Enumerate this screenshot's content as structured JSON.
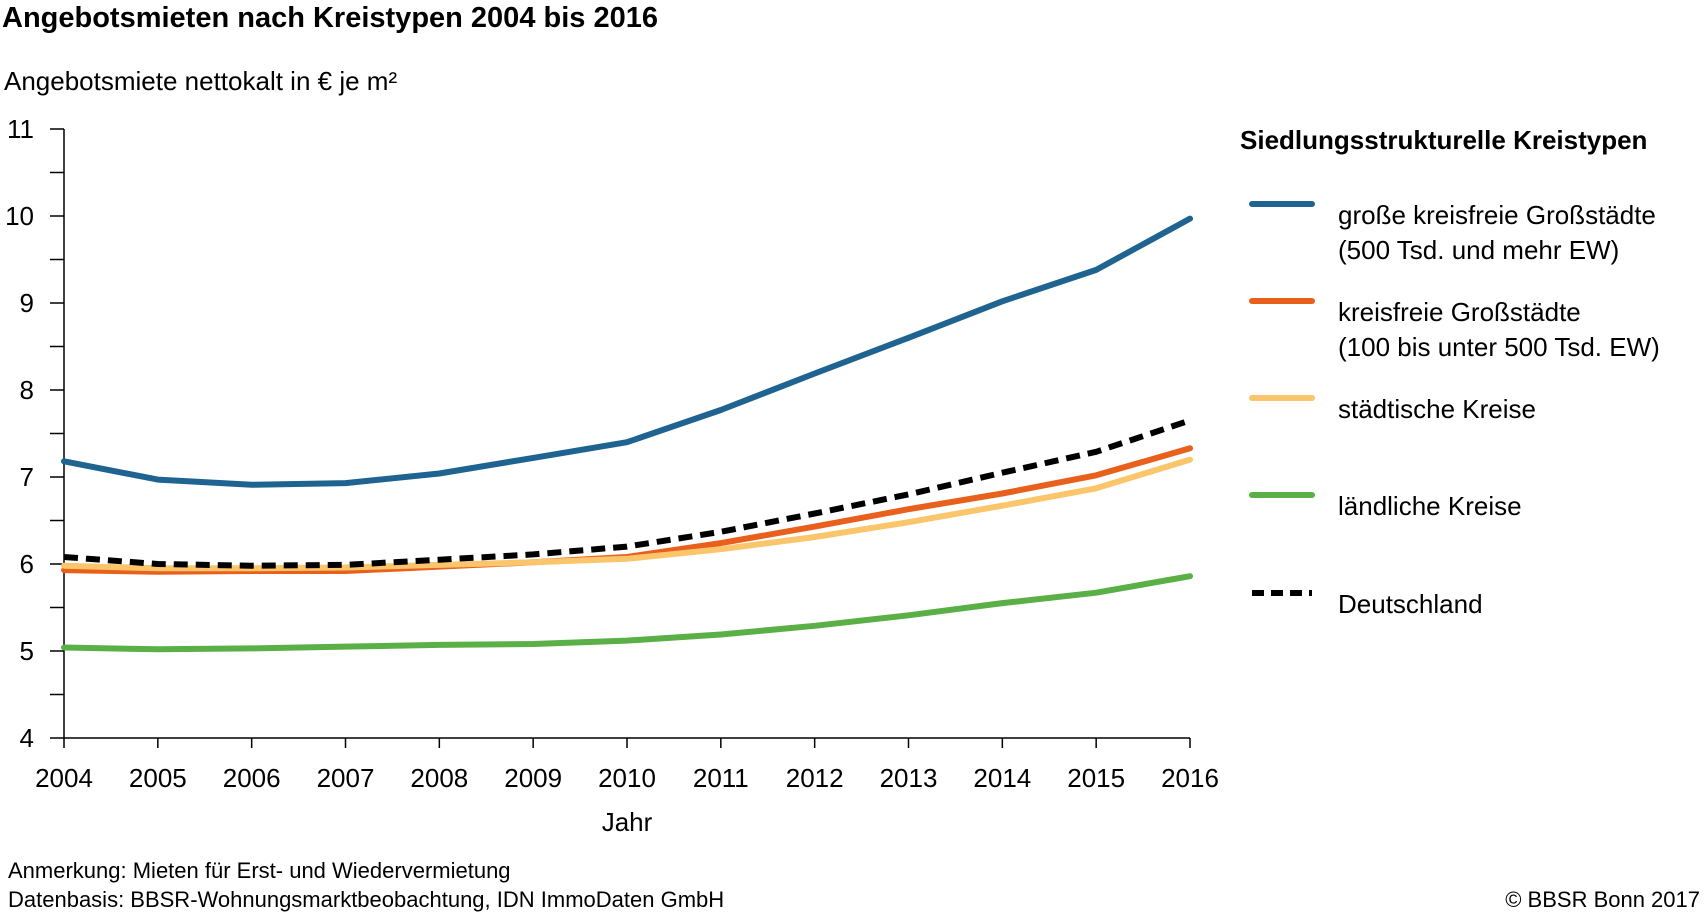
{
  "title": "Angebotsmieten nach Kreistypen 2004 bis 2016",
  "note1": "Anmerkung: Mieten für Erst- und Wiedervermietung",
  "note2": "Datenbasis: BBSR-Wohnungsmarktbeobachtung, IDN ImmoDaten GmbH",
  "copyright": "© BBSR Bonn 2017",
  "chart_data": {
    "type": "line",
    "title": "Angebotsmieten nach Kreistypen 2004 bis 2016",
    "ylabel": "Angebotsmiete nettokalt in € je m²",
    "xlabel": "Jahr",
    "ylim": [
      4,
      11
    ],
    "yticks": [
      4,
      5,
      6,
      7,
      8,
      9,
      10,
      11
    ],
    "x": [
      "2004",
      "2005",
      "2006",
      "2007",
      "2008",
      "2009",
      "2010",
      "2011",
      "2012",
      "2013",
      "2014",
      "2015",
      "2016"
    ],
    "grid": false,
    "legend_title": "Siedlungsstrukturelle Kreistypen",
    "legend_position": "right",
    "series": [
      {
        "name": "große kreisfreie Großstädte",
        "name_line2": "(500 Tsd. und mehr EW)",
        "color": "#1f6391",
        "style": "solid",
        "values": [
          7.18,
          6.97,
          6.91,
          6.93,
          7.04,
          7.22,
          7.4,
          7.77,
          8.19,
          8.6,
          9.02,
          9.38,
          9.97
        ]
      },
      {
        "name": "kreisfreie Großstädte",
        "name_line2": "(100 bis unter 500 Tsd. EW)",
        "color": "#e8601c",
        "style": "solid",
        "values": [
          5.93,
          5.91,
          5.92,
          5.92,
          5.97,
          6.02,
          6.08,
          6.24,
          6.43,
          6.63,
          6.81,
          7.02,
          7.33
        ]
      },
      {
        "name": "städtische Kreise",
        "name_line2": "",
        "color": "#fbc56b",
        "style": "solid",
        "values": [
          5.98,
          5.95,
          5.95,
          5.96,
          5.99,
          6.02,
          6.06,
          6.17,
          6.31,
          6.48,
          6.67,
          6.87,
          7.2
        ]
      },
      {
        "name": "ländliche Kreise",
        "name_line2": "",
        "color": "#5aaf46",
        "style": "solid",
        "values": [
          5.04,
          5.02,
          5.03,
          5.05,
          5.07,
          5.08,
          5.12,
          5.19,
          5.29,
          5.41,
          5.55,
          5.67,
          5.86
        ]
      },
      {
        "name": "Deutschland",
        "name_line2": "",
        "color": "#000000",
        "style": "dashed",
        "values": [
          6.08,
          6.0,
          5.98,
          5.99,
          6.05,
          6.11,
          6.2,
          6.37,
          6.58,
          6.8,
          7.05,
          7.29,
          7.65
        ]
      }
    ]
  }
}
